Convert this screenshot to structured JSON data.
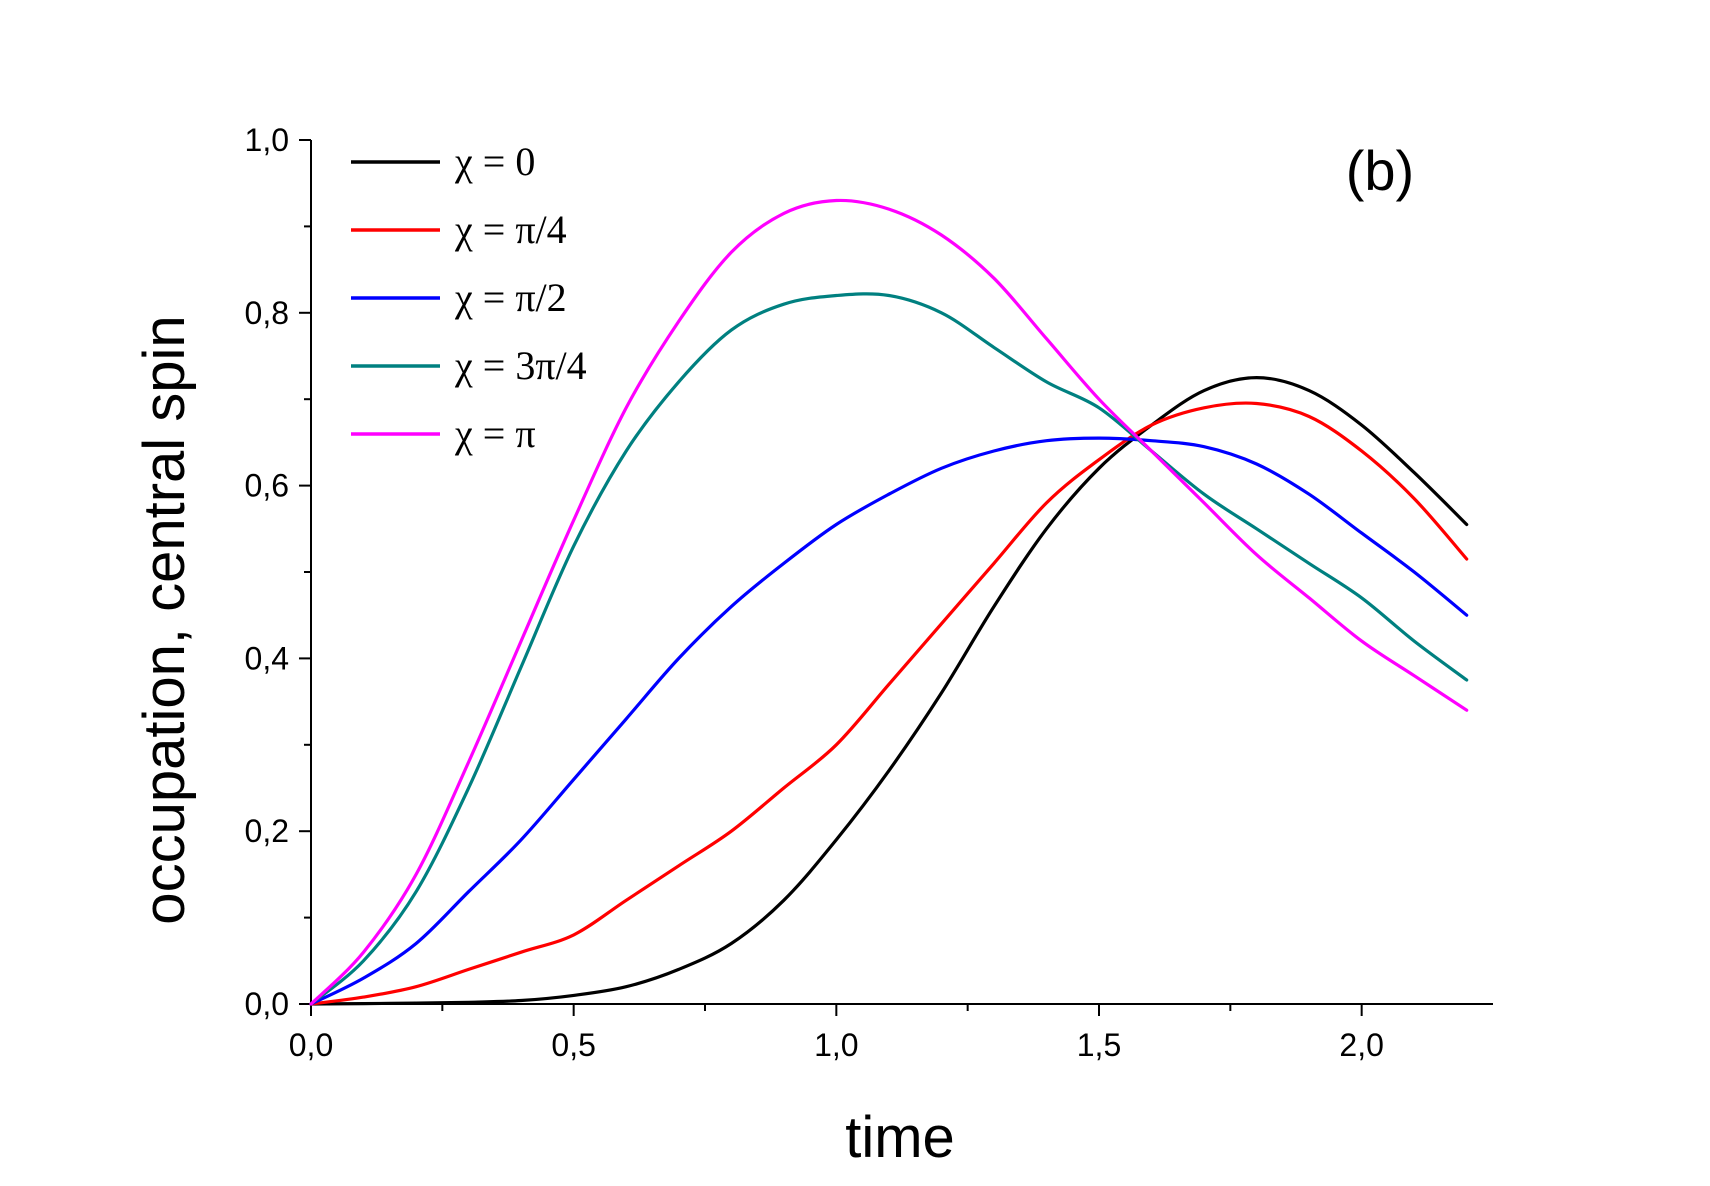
{
  "chart_data": {
    "type": "line",
    "panel_label": "(b)",
    "xlabel": "time",
    "ylabel": "occupation, central spin",
    "xlim": [
      0,
      2.25
    ],
    "ylim": [
      0,
      1.0
    ],
    "xticks": [
      "0,0",
      "0,5",
      "1,0",
      "1,5",
      "2,0"
    ],
    "yticks": [
      "0,0",
      "0,2",
      "0,4",
      "0,6",
      "0,8",
      "1,0"
    ],
    "legend_position": "top-left",
    "grid": false,
    "series": [
      {
        "name": "χ = 0",
        "color": "#000000",
        "x": [
          0,
          0.1,
          0.2,
          0.3,
          0.4,
          0.5,
          0.6,
          0.7,
          0.8,
          0.9,
          1.0,
          1.1,
          1.2,
          1.3,
          1.4,
          1.5,
          1.6,
          1.7,
          1.8,
          1.9,
          2.0,
          2.1,
          2.2
        ],
        "y": [
          0,
          0.0005,
          0.001,
          0.002,
          0.004,
          0.01,
          0.02,
          0.04,
          0.07,
          0.12,
          0.19,
          0.27,
          0.36,
          0.46,
          0.55,
          0.62,
          0.67,
          0.71,
          0.725,
          0.71,
          0.67,
          0.615,
          0.555
        ]
      },
      {
        "name": "χ = π/4",
        "color": "#ff0000",
        "x": [
          0,
          0.1,
          0.2,
          0.3,
          0.4,
          0.5,
          0.6,
          0.7,
          0.8,
          0.9,
          1.0,
          1.1,
          1.2,
          1.3,
          1.4,
          1.5,
          1.6,
          1.7,
          1.8,
          1.9,
          2.0,
          2.1,
          2.2
        ],
        "y": [
          0,
          0.008,
          0.02,
          0.04,
          0.06,
          0.08,
          0.12,
          0.16,
          0.2,
          0.25,
          0.3,
          0.37,
          0.44,
          0.51,
          0.58,
          0.63,
          0.67,
          0.69,
          0.695,
          0.68,
          0.64,
          0.585,
          0.515
        ]
      },
      {
        "name": "χ = π/2",
        "color": "#0000ff",
        "x": [
          0,
          0.1,
          0.2,
          0.3,
          0.4,
          0.5,
          0.6,
          0.7,
          0.8,
          0.9,
          1.0,
          1.1,
          1.2,
          1.3,
          1.4,
          1.5,
          1.6,
          1.7,
          1.8,
          1.9,
          2.0,
          2.1,
          2.2
        ],
        "y": [
          0,
          0.03,
          0.07,
          0.13,
          0.19,
          0.26,
          0.33,
          0.4,
          0.46,
          0.51,
          0.555,
          0.59,
          0.62,
          0.64,
          0.652,
          0.655,
          0.652,
          0.645,
          0.625,
          0.59,
          0.545,
          0.5,
          0.45
        ]
      },
      {
        "name": "χ = 3π/4",
        "color": "#008080",
        "x": [
          0,
          0.1,
          0.2,
          0.3,
          0.4,
          0.5,
          0.6,
          0.7,
          0.8,
          0.9,
          1.0,
          1.1,
          1.2,
          1.3,
          1.4,
          1.5,
          1.6,
          1.7,
          1.8,
          1.9,
          2.0,
          2.1,
          2.2
        ],
        "y": [
          0,
          0.05,
          0.13,
          0.25,
          0.39,
          0.53,
          0.64,
          0.72,
          0.78,
          0.81,
          0.82,
          0.82,
          0.8,
          0.76,
          0.72,
          0.69,
          0.64,
          0.59,
          0.55,
          0.51,
          0.47,
          0.42,
          0.375
        ]
      },
      {
        "name": "χ = π",
        "color": "#ff00ff",
        "x": [
          0,
          0.1,
          0.2,
          0.3,
          0.4,
          0.5,
          0.6,
          0.7,
          0.8,
          0.9,
          1.0,
          1.1,
          1.2,
          1.3,
          1.4,
          1.5,
          1.6,
          1.7,
          1.8,
          1.9,
          2.0,
          2.1,
          2.2
        ],
        "y": [
          0,
          0.06,
          0.15,
          0.28,
          0.42,
          0.56,
          0.69,
          0.79,
          0.87,
          0.915,
          0.93,
          0.92,
          0.89,
          0.84,
          0.77,
          0.7,
          0.64,
          0.58,
          0.52,
          0.47,
          0.42,
          0.38,
          0.34
        ]
      }
    ]
  }
}
